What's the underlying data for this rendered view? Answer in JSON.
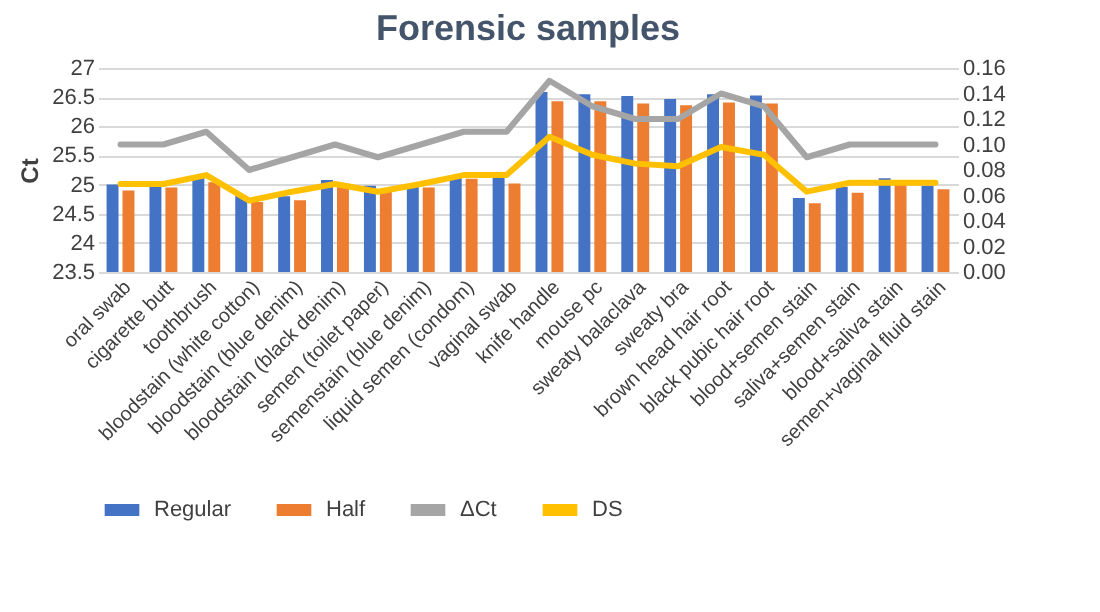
{
  "chart_data": {
    "type": "bar",
    "title": "Forensic samples",
    "ylabel": "Ct",
    "categories": [
      "oral swab",
      "cigarette butt",
      "toothbrush",
      "bloodstain (white cotton)",
      "bloodstain (blue denim)",
      "bloodstain (black denim)",
      "semen (toilet paper)",
      "semenstain (blue denim)",
      "liquid semen (condom)",
      "vaginal swab",
      "knife handle",
      "mouse pc",
      "sweaty balaclava",
      "sweaty bra",
      "brown head hair root",
      "black pubic hair root",
      "blood+semen stain",
      "saliva+semen stain",
      "blood+saliva stain",
      "semen+vaginal fluid stain"
    ],
    "series": [
      {
        "name": "Regular",
        "color": "#4472c4",
        "values": [
          25.0,
          25.0,
          25.14,
          24.81,
          24.8,
          25.08,
          24.98,
          25.0,
          25.14,
          25.13,
          26.59,
          26.55,
          26.52,
          26.47,
          26.55,
          26.53,
          24.77,
          24.96,
          25.11,
          24.98
        ]
      },
      {
        "name": "Half",
        "color": "#ed7d31",
        "values": [
          24.9,
          24.95,
          25.04,
          24.7,
          24.73,
          25.02,
          24.88,
          24.95,
          25.1,
          25.02,
          26.43,
          26.43,
          26.39,
          26.36,
          26.41,
          26.39,
          24.68,
          24.86,
          25.03,
          24.92
        ]
      },
      {
        "name": "ΔCt",
        "type": "line",
        "axis": "y2",
        "color": "#a5a5a5",
        "values": [
          0.1,
          0.1,
          0.11,
          0.08,
          0.09,
          0.1,
          0.09,
          0.1,
          0.11,
          0.11,
          0.15,
          0.13,
          0.12,
          0.12,
          0.14,
          0.13,
          0.09,
          0.1,
          0.1,
          0.1
        ]
      },
      {
        "name": "DS",
        "type": "line",
        "axis": "y2",
        "color": "#ffc000",
        "values": [
          0.069,
          0.069,
          0.076,
          0.056,
          0.063,
          0.069,
          0.063,
          0.069,
          0.076,
          0.076,
          0.106,
          0.092,
          0.085,
          0.083,
          0.098,
          0.092,
          0.063,
          0.07,
          0.07,
          0.07
        ]
      }
    ],
    "ylim": [
      23.5,
      27
    ],
    "yticks": [
      23.5,
      24,
      24.5,
      25,
      25.5,
      26,
      26.5,
      27
    ],
    "y2lim": [
      0,
      0.16
    ],
    "y2ticks": [
      {
        "value": 0,
        "label": "0.00"
      },
      {
        "value": 0.02,
        "label": "0.02"
      },
      {
        "value": 0.04,
        "label": "0.04"
      },
      {
        "value": 0.06,
        "label": "0.06"
      },
      {
        "value": 0.08,
        "label": "0.08"
      },
      {
        "value": 0.1,
        "label": "0.10"
      },
      {
        "value": 0.12,
        "label": "0.12"
      },
      {
        "value": 0.14,
        "label": "0.14"
      },
      {
        "value": 0.16,
        "label": "0.16"
      }
    ],
    "grid": "y",
    "legend": "bottom"
  }
}
